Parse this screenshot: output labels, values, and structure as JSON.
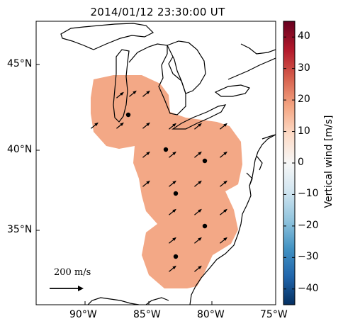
{
  "title": "2014/01/12 23:30:00 UT",
  "map": {
    "lat_labels": [
      "45°N",
      "40°N",
      "35°N"
    ],
    "lon_labels": [
      "90°W",
      "85°W",
      "80°W",
      "75°W"
    ],
    "scale_label": "200 m/s",
    "colors": {
      "coverage": "#f3a886",
      "coastline": "#000000",
      "arrow": "#000000",
      "station": "#000000"
    },
    "stations_count": 6
  },
  "colorbar": {
    "label": "Vertical wind [m/s]",
    "ticks": [
      "40",
      "30",
      "20",
      "10",
      "0",
      "−10",
      "−20",
      "−30",
      "−40"
    ],
    "range": [
      -45,
      45
    ],
    "colormap": "RdBu_r",
    "colors": [
      "#053061",
      "#2166ac",
      "#4393c3",
      "#92c5de",
      "#d1e5f0",
      "#f7f7f7",
      "#fddbc7",
      "#f4a582",
      "#d6604d",
      "#b2182b",
      "#67001f"
    ]
  }
}
